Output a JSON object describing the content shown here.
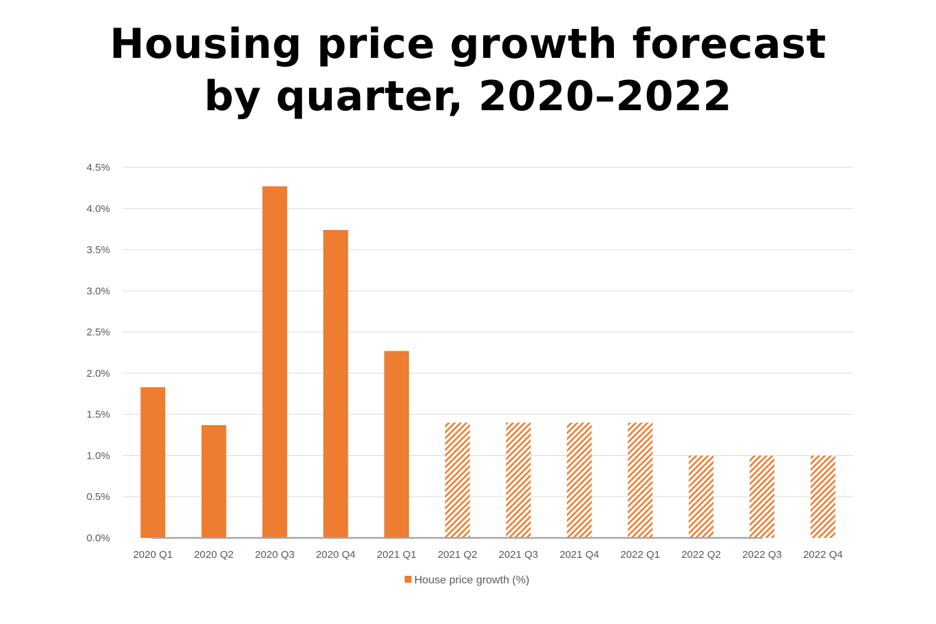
{
  "chart_data": {
    "type": "bar",
    "title_lines": [
      "Housing price growth forecast",
      "by quarter, 2020–2022"
    ],
    "categories": [
      "2020 Q1",
      "2020 Q2",
      "2020 Q3",
      "2020 Q4",
      "2021 Q1",
      "2021 Q2",
      "2021 Q3",
      "2021 Q4",
      "2022 Q1",
      "2022 Q2",
      "2022 Q3",
      "2022 Q4"
    ],
    "series": [
      {
        "name": "House price growth (%)",
        "values": [
          1.83,
          1.37,
          4.27,
          3.74,
          2.27,
          1.4,
          1.4,
          1.4,
          1.4,
          1.0,
          1.0,
          1.0
        ],
        "forecast_flags": [
          false,
          false,
          false,
          false,
          false,
          true,
          true,
          true,
          true,
          true,
          true,
          true
        ]
      }
    ],
    "yticks": [
      "0.0%",
      "0.5%",
      "1.0%",
      "1.5%",
      "2.0%",
      "2.5%",
      "3.0%",
      "3.5%",
      "4.0%",
      "4.5%"
    ],
    "ylim": [
      0,
      4.5
    ],
    "xlabel": "",
    "ylabel": "",
    "grid": true,
    "legend": {
      "position": "bottom",
      "label": "House price growth (%)"
    },
    "colors": {
      "bar": "#ED7D31",
      "grid": "#D9D9D9",
      "axis": "#A6A6A6",
      "tick_text": "#595959"
    }
  }
}
